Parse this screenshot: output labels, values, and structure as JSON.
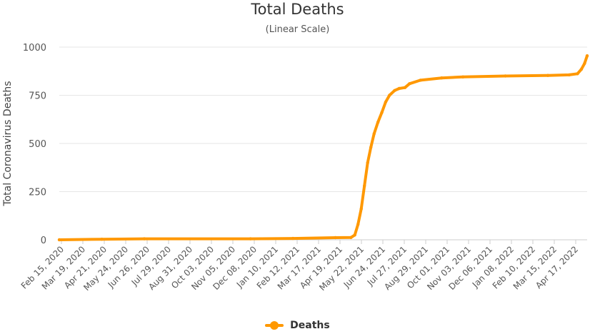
{
  "chart_data": {
    "type": "line",
    "title": "Total Deaths",
    "subtitle": "(Linear Scale)",
    "ylabel": "Total Coronavirus Deaths",
    "xlabel": "",
    "ylim": [
      0,
      1000
    ],
    "yticks": [
      0,
      250,
      500,
      750,
      1000
    ],
    "grid": true,
    "legend_position": "bottom-center",
    "x_start": "2020-02-15",
    "x_end": "2022-05-15",
    "x_tick_labels": [
      "Feb 15, 2020",
      "Mar 19, 2020",
      "Apr 21, 2020",
      "May 24, 2020",
      "Jun 26, 2020",
      "Jul 29, 2020",
      "Aug 31, 2020",
      "Oct 03, 2020",
      "Nov 05, 2020",
      "Dec 08, 2020",
      "Jan 10, 2021",
      "Feb 12, 2021",
      "Mar 17, 2021",
      "Apr 19, 2021",
      "May 22, 2021",
      "Jun 24, 2021",
      "Jul 27, 2021",
      "Aug 29, 2021",
      "Oct 01, 2021",
      "Nov 03, 2021",
      "Dec 06, 2021",
      "Jan 08, 2022",
      "Feb 10, 2022",
      "Mar 15, 2022",
      "Apr 17, 2022"
    ],
    "series": [
      {
        "name": "Deaths",
        "color": "#FF9800",
        "points": [
          [
            "2020-02-15",
            0
          ],
          [
            "2020-04-21",
            3
          ],
          [
            "2020-06-26",
            5
          ],
          [
            "2020-12-08",
            5
          ],
          [
            "2021-02-12",
            7
          ],
          [
            "2021-04-19",
            11
          ],
          [
            "2021-05-13",
            12
          ],
          [
            "2021-05-19",
            25
          ],
          [
            "2021-05-24",
            80
          ],
          [
            "2021-05-29",
            160
          ],
          [
            "2021-06-03",
            280
          ],
          [
            "2021-06-08",
            400
          ],
          [
            "2021-06-13",
            480
          ],
          [
            "2021-06-18",
            550
          ],
          [
            "2021-06-24",
            610
          ],
          [
            "2021-06-30",
            660
          ],
          [
            "2021-07-06",
            715
          ],
          [
            "2021-07-12",
            750
          ],
          [
            "2021-07-20",
            775
          ],
          [
            "2021-07-27",
            785
          ],
          [
            "2021-08-05",
            790
          ],
          [
            "2021-08-12",
            810
          ],
          [
            "2021-08-29",
            828
          ],
          [
            "2021-10-01",
            840
          ],
          [
            "2021-11-03",
            845
          ],
          [
            "2022-01-08",
            850
          ],
          [
            "2022-03-15",
            853
          ],
          [
            "2022-04-17",
            856
          ],
          [
            "2022-04-30",
            862
          ],
          [
            "2022-05-06",
            885
          ],
          [
            "2022-05-11",
            915
          ],
          [
            "2022-05-15",
            955
          ]
        ]
      }
    ]
  }
}
